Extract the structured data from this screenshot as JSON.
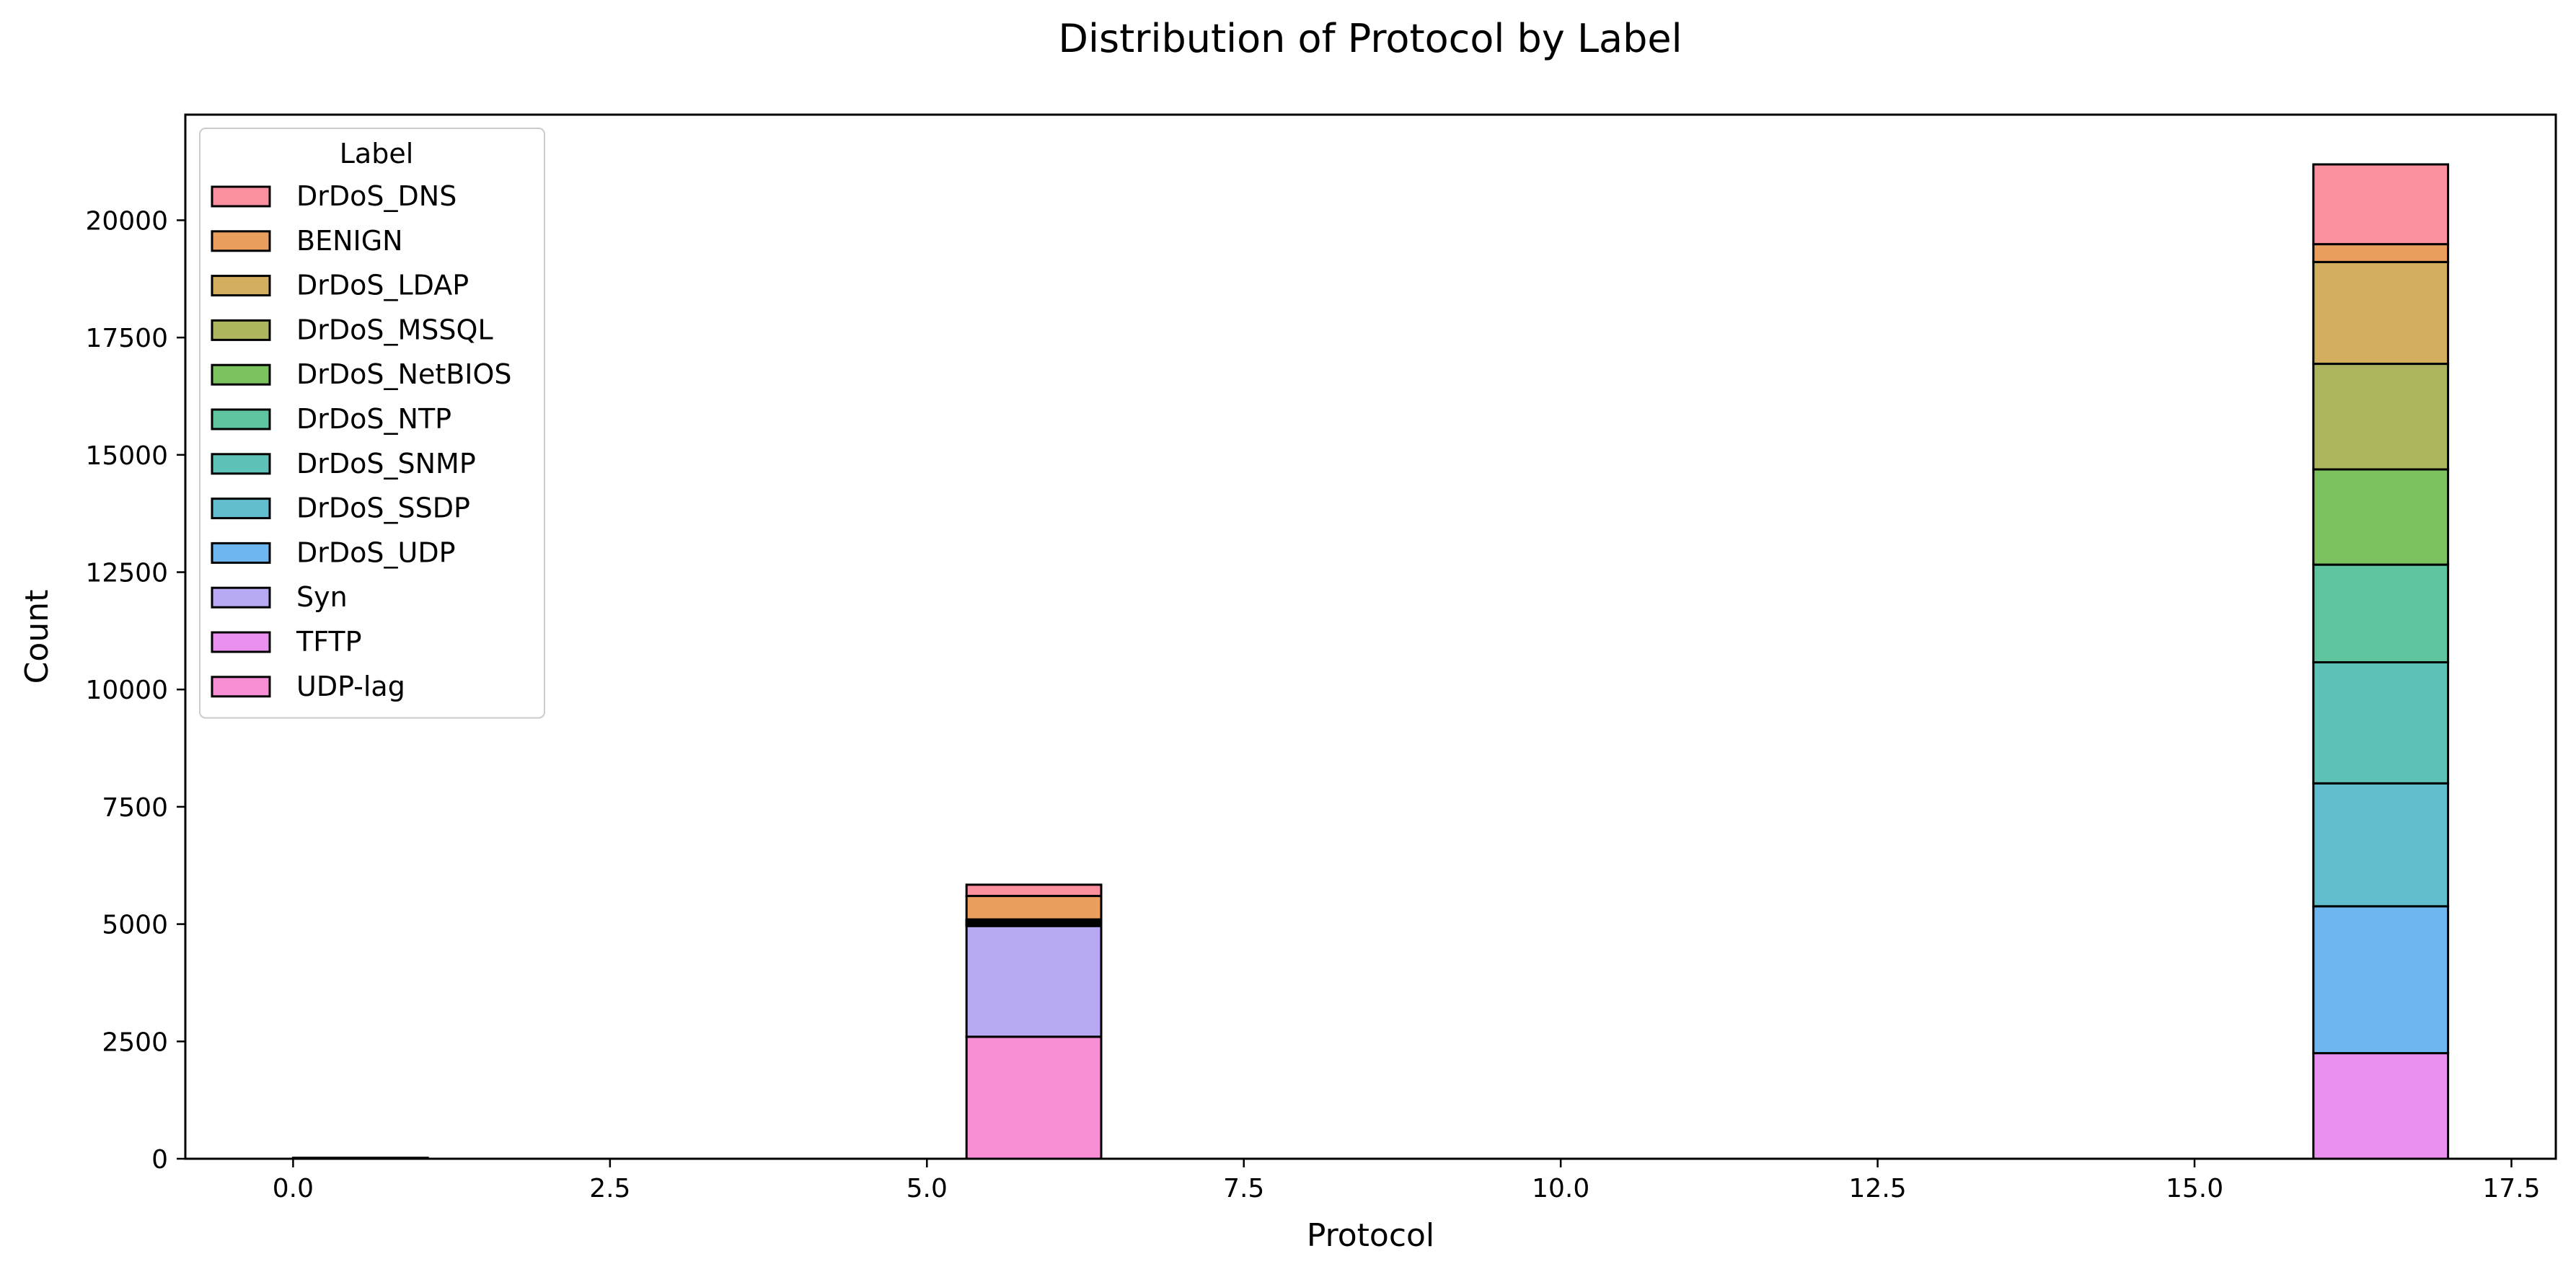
{
  "chart_data": {
    "type": "bar",
    "subtype": "stacked histogram",
    "title": "Distribution of  Protocol by Label",
    "xlabel": "Protocol",
    "ylabel": "Count",
    "xlim": [
      -0.85,
      17.85
    ],
    "ylim": [
      0,
      22250
    ],
    "xticks": [
      0.0,
      2.5,
      5.0,
      7.5,
      10.0,
      12.5,
      15.0,
      17.5
    ],
    "xtick_labels": [
      "0.0",
      "2.5",
      "5.0",
      "7.5",
      "10.0",
      "12.5",
      "15.0",
      "17.5"
    ],
    "yticks": [
      0,
      2500,
      5000,
      7500,
      10000,
      12500,
      15000,
      17500,
      20000
    ],
    "ytick_labels": [
      "0",
      "2500",
      "5000",
      "7500",
      "10000",
      "12500",
      "15000",
      "17500",
      "20000"
    ],
    "grid": false,
    "legend": {
      "title": "Label",
      "position": "top-left"
    },
    "bin_edges": [
      0.0,
      1.0625,
      2.125,
      3.1875,
      4.25,
      5.3125,
      6.375,
      7.4375,
      8.5,
      9.5625,
      10.625,
      11.6875,
      12.75,
      13.8125,
      14.875,
      15.9375,
      17.0
    ],
    "categories": [
      "0",
      "6",
      "17"
    ],
    "category_bins": [
      [
        0.0,
        1.0625
      ],
      [
        5.3125,
        6.375
      ],
      [
        15.9375,
        17.0
      ]
    ],
    "series": [
      {
        "name": "DrDoS_DNS",
        "color": "#fa8f9e",
        "values": [
          0,
          240,
          1700
        ]
      },
      {
        "name": "BENIGN",
        "color": "#eb9f5f",
        "values": [
          20,
          500,
          380
        ]
      },
      {
        "name": "DrDoS_LDAP",
        "color": "#d4ae5f",
        "values": [
          0,
          20,
          2170
        ]
      },
      {
        "name": "DrDoS_MSSQL",
        "color": "#adb65f",
        "values": [
          0,
          20,
          2250
        ]
      },
      {
        "name": "DrDoS_NetBIOS",
        "color": "#7cc360",
        "values": [
          0,
          20,
          2030
        ]
      },
      {
        "name": "DrDoS_NTP",
        "color": "#5ec59f",
        "values": [
          0,
          20,
          2080
        ]
      },
      {
        "name": "DrDoS_SNMP",
        "color": "#5fc2b9",
        "values": [
          0,
          20,
          2580
        ]
      },
      {
        "name": "DrDoS_SSDP",
        "color": "#62bdcf",
        "values": [
          0,
          20,
          2620
        ]
      },
      {
        "name": "DrDoS_UDP",
        "color": "#6db6ef",
        "values": [
          0,
          20,
          3130
        ]
      },
      {
        "name": "Syn",
        "color": "#b9a8f3",
        "values": [
          0,
          2360,
          0
        ]
      },
      {
        "name": "TFTP",
        "color": "#ea90f1",
        "values": [
          0,
          0,
          2250
        ]
      },
      {
        "name": "UDP-lag",
        "color": "#f88ed3",
        "values": [
          0,
          2600,
          0
        ]
      }
    ]
  }
}
